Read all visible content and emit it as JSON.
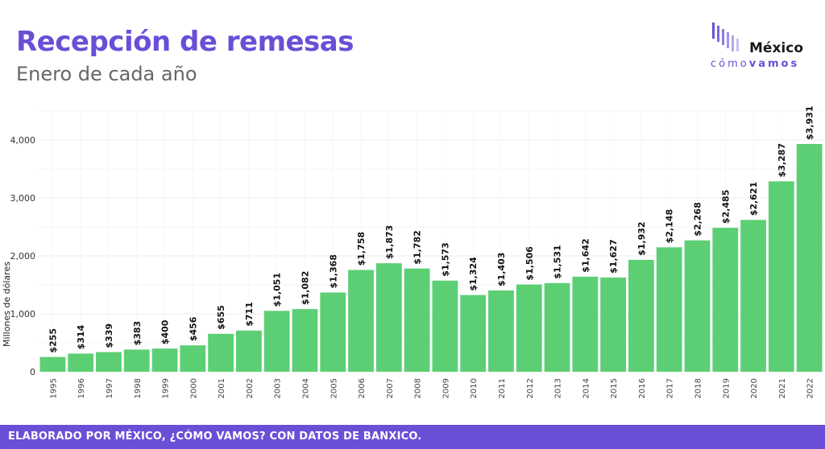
{
  "header": {
    "title": "Recepción de remesas",
    "subtitle": "Enero de cada año"
  },
  "logo": {
    "word": "México",
    "sub_light": "cómo",
    "sub_bold": "vamos"
  },
  "footer": {
    "text": "ELABORADO POR MÉXICO, ¿CÓMO VAMOS? CON DATOS DE BANXICO."
  },
  "colors": {
    "bar": "#5ccf74",
    "title": "#6a4fd6",
    "footer_bg": "#6a4fd6",
    "grid": "#ececec"
  },
  "chart_data": {
    "type": "bar",
    "ylabel": "Millones de dólares",
    "xlabel": "",
    "ylim": [
      0,
      4500
    ],
    "yticks": [
      0,
      1000,
      2000,
      3000,
      4000
    ],
    "ytick_labels": [
      "0",
      "1,000",
      "2,000",
      "3,000",
      "4,000"
    ],
    "grid": true,
    "categories": [
      "1995",
      "1996",
      "1997",
      "1998",
      "1999",
      "2000",
      "2001",
      "2002",
      "2003",
      "2004",
      "2005",
      "2006",
      "2007",
      "2008",
      "2009",
      "2010",
      "2011",
      "2012",
      "2013",
      "2014",
      "2015",
      "2016",
      "2017",
      "2018",
      "2019",
      "2020",
      "2021",
      "2022"
    ],
    "values": [
      255,
      314,
      339,
      383,
      400,
      456,
      655,
      711,
      1051,
      1082,
      1368,
      1758,
      1873,
      1782,
      1573,
      1324,
      1403,
      1506,
      1531,
      1642,
      1627,
      1932,
      2148,
      2268,
      2485,
      2621,
      3287,
      3931
    ],
    "data_labels": [
      "$255",
      "$314",
      "$339",
      "$383",
      "$400",
      "$456",
      "$655",
      "$711",
      "$1,051",
      "$1,082",
      "$1,368",
      "$1,758",
      "$1,873",
      "$1,782",
      "$1,573",
      "$1,324",
      "$1,403",
      "$1,506",
      "$1,531",
      "$1,642",
      "$1,627",
      "$1,932",
      "$2,148",
      "$2,268",
      "$2,485",
      "$2,621",
      "$3,287",
      "$3,931"
    ]
  }
}
